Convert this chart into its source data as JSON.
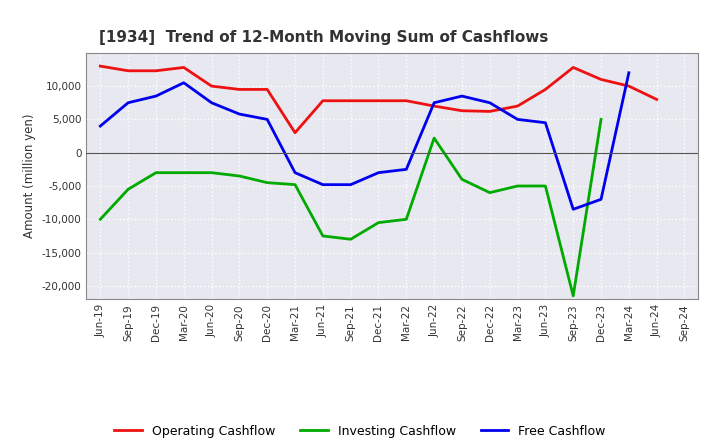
{
  "title": "[1934]  Trend of 12-Month Moving Sum of Cashflows",
  "ylabel": "Amount (million yen)",
  "x_labels": [
    "Jun-19",
    "Sep-19",
    "Dec-19",
    "Mar-20",
    "Jun-20",
    "Sep-20",
    "Dec-20",
    "Mar-21",
    "Jun-21",
    "Sep-21",
    "Dec-21",
    "Mar-22",
    "Jun-22",
    "Sep-22",
    "Dec-22",
    "Mar-23",
    "Jun-23",
    "Sep-23",
    "Dec-23",
    "Mar-24",
    "Jun-24",
    "Sep-24"
  ],
  "operating": [
    13000,
    12300,
    12300,
    12800,
    10000,
    9500,
    9500,
    3000,
    7800,
    7800,
    7800,
    7800,
    7000,
    6300,
    6200,
    7000,
    9500,
    12800,
    11000,
    10000,
    8000,
    null
  ],
  "investing": [
    -10000,
    -5500,
    -3000,
    -3000,
    -3000,
    -3500,
    -4500,
    -4800,
    -12500,
    -13000,
    -10500,
    -10000,
    2200,
    -4000,
    -6000,
    -5000,
    -5000,
    -21500,
    5000,
    null,
    null,
    null
  ],
  "free": [
    4000,
    7500,
    8500,
    10500,
    7500,
    5800,
    5000,
    -3000,
    -4800,
    -4800,
    -3000,
    -2500,
    7500,
    8500,
    7500,
    5000,
    4500,
    -8500,
    -7000,
    12000,
    null,
    null
  ],
  "operating_color": "#EE1111",
  "investing_color": "#00AA00",
  "free_color": "#0000EE",
  "ylim": [
    -22000,
    15000
  ],
  "yticks": [
    -20000,
    -15000,
    -10000,
    -5000,
    0,
    5000,
    10000
  ],
  "plot_bg_color": "#E8E8F0",
  "fig_bg_color": "#FFFFFF",
  "grid_color": "#FFFFFF",
  "title_color": "#333333",
  "label_color": "#333333"
}
